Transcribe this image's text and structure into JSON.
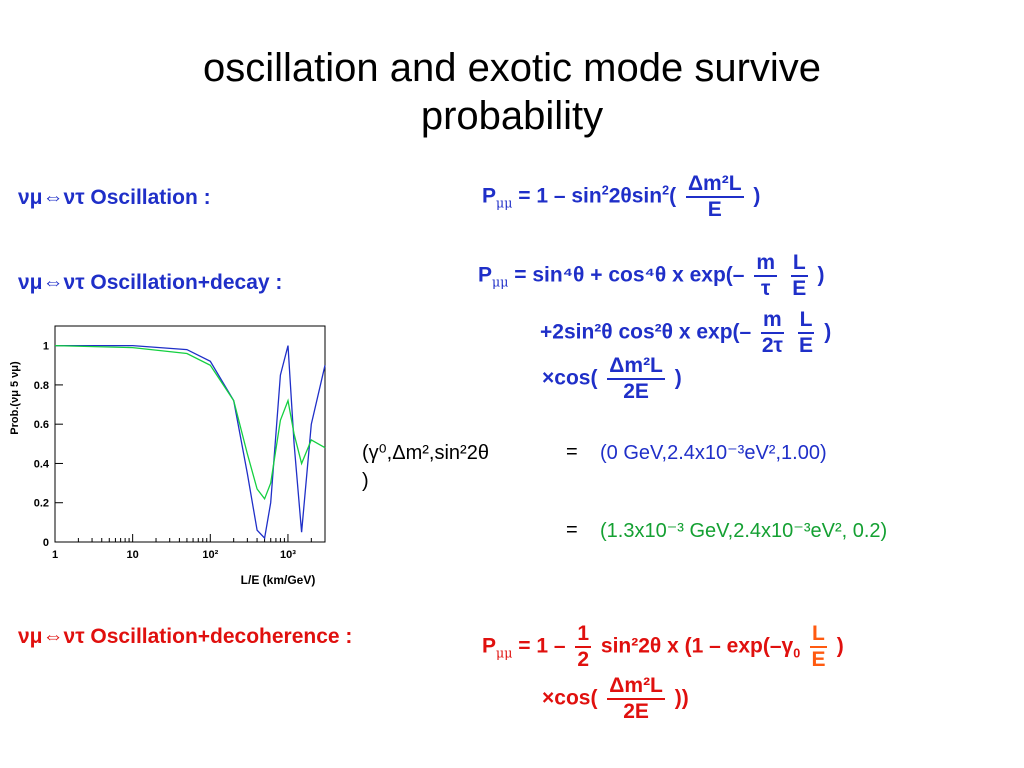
{
  "title": {
    "line1": "oscillation and exotic mode survive",
    "line2": "probability"
  },
  "sections": {
    "osc_label": "νμ⇔ντ Oscillation :",
    "osc_decay_label": "νμ⇔ντ Oscillation+decay  :",
    "decoherence_label": "νμ⇔ντ Oscillation+decoherence :"
  },
  "formulas": {
    "P": "P",
    "mumu": "μμ",
    "osc": {
      "lhs": "= 1 – sin",
      "mid": "2θsin",
      "paren": "(",
      "num": "Δm²L",
      "den": "E",
      "close": ")"
    },
    "decay1": {
      "lhs": "= sin⁴θ + cos⁴θ x exp(–",
      "frac1_num": "m",
      "frac1_den": "τ",
      "frac2_num": "L",
      "frac2_den": "E",
      "close": ")"
    },
    "decay2": {
      "lhs": "+2sin²θ cos²θ x exp(–",
      "frac1_num": "m",
      "frac1_den": "2τ",
      "frac2_num": "L",
      "frac2_den": "E",
      "close": ")"
    },
    "decay3": {
      "lhs": "×cos(",
      "num": "Δm²L",
      "den": "2E",
      "close": ")"
    },
    "deco1": {
      "lhs": "= 1 –",
      "frac1_num": "1",
      "frac1_den": "2",
      "mid": "sin²2θ x (1 – exp(–γ",
      "sub0": "0",
      "frac2_num": "L",
      "frac2_den": "E",
      "close": ")"
    },
    "deco2": {
      "lhs": "×cos(",
      "num": "Δm²L",
      "den": "2E",
      "close": "))"
    }
  },
  "params": {
    "label_line1": "(γ⁰,Δm²,sin²2θ",
    "label_line2": ")",
    "eq1": "=",
    "val1": "(0 GeV,2.4x10⁻³eV²,1.00)",
    "eq2": "=",
    "val2": "(1.3x10⁻³ GeV,2.4x10⁻³eV², 0.2)"
  },
  "chart_data": {
    "type": "line",
    "title": "",
    "xlabel": "L/E (km/GeV)",
    "ylabel": "Prob.(νμ 5 νμ)",
    "x_scale": "log",
    "xlim": [
      1,
      3000
    ],
    "ylim": [
      0,
      1.1
    ],
    "x_ticks": [
      "1",
      "10",
      "10²",
      "10³"
    ],
    "y_ticks": [
      "0",
      "0.2",
      "0.4",
      "0.6",
      "0.8",
      "1"
    ],
    "series": [
      {
        "color": "#1f2fc8",
        "x": [
          1,
          10,
          50,
          100,
          200,
          300,
          400,
          500,
          600,
          800,
          1000,
          1200,
          1500,
          2000,
          3000
        ],
        "y": [
          1.0,
          1.0,
          0.98,
          0.92,
          0.72,
          0.35,
          0.06,
          0.02,
          0.2,
          0.85,
          1.0,
          0.5,
          0.05,
          0.6,
          0.9
        ]
      },
      {
        "color": "#14d040",
        "x": [
          1,
          10,
          50,
          100,
          200,
          300,
          400,
          500,
          600,
          800,
          1000,
          1200,
          1500,
          2000,
          3000
        ],
        "y": [
          1.0,
          0.99,
          0.96,
          0.9,
          0.72,
          0.45,
          0.27,
          0.22,
          0.3,
          0.62,
          0.72,
          0.55,
          0.4,
          0.52,
          0.48
        ]
      }
    ]
  }
}
